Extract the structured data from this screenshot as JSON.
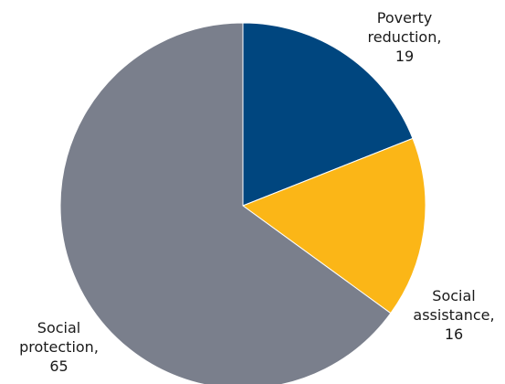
{
  "chart_data": {
    "type": "pie",
    "title": "",
    "slices": [
      {
        "label_lines": [
          "Poverty",
          "reduction,"
        ],
        "value": 19,
        "color": "#00467f"
      },
      {
        "label_lines": [
          "Social",
          "assistance,"
        ],
        "value": 16,
        "color": "#fbb617"
      },
      {
        "label_lines": [
          "Social",
          "protection,"
        ],
        "value": 65,
        "color": "#7a7f8c"
      }
    ],
    "start_angle_deg": 0,
    "direction": "clockwise",
    "legend": "none"
  }
}
